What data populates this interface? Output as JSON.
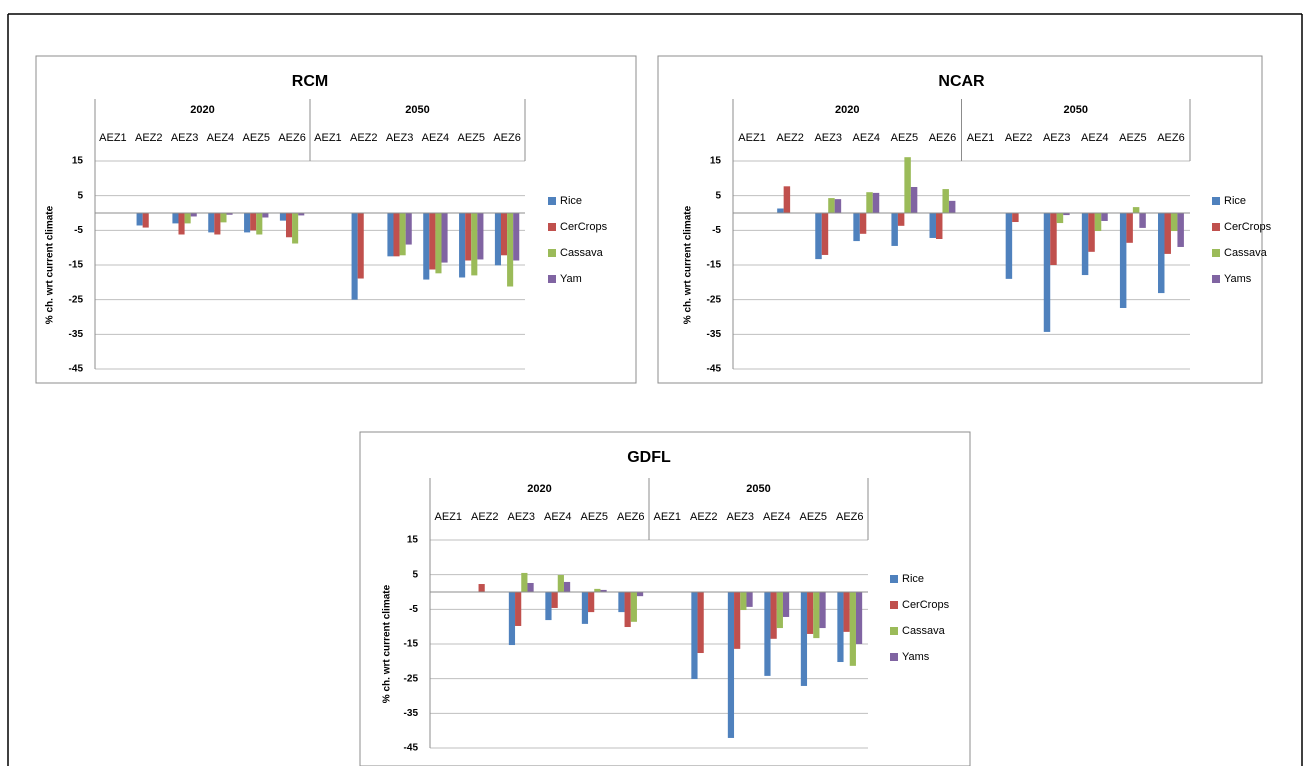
{
  "chart_data": [
    {
      "type": "bar",
      "title": "RCM",
      "y_label": "% ch. wrt current climate",
      "category_groups": [
        "2020",
        "2050"
      ],
      "categories": [
        "AEZ1",
        "AEZ2",
        "AEZ3",
        "AEZ4",
        "AEZ5",
        "AEZ6",
        "AEZ1",
        "AEZ2",
        "AEZ3",
        "AEZ4",
        "AEZ5",
        "AEZ6"
      ],
      "ylim": [
        -45,
        15
      ],
      "yticks": [
        15,
        5,
        -5,
        -15,
        -25,
        -35,
        -45
      ],
      "grid": true,
      "series": [
        {
          "name": "Rice",
          "color": "#4f81bd",
          "values": [
            0,
            -3.6,
            -3,
            -5.6,
            -5.6,
            -2.2,
            0,
            -25,
            -12.5,
            -19.2,
            -18.6,
            -15.1
          ]
        },
        {
          "name": "CerCrops",
          "color": "#c0504d",
          "values": [
            0,
            -4.2,
            -6.2,
            -6.2,
            -5,
            -7,
            0,
            -18.9,
            -12.5,
            -16.3,
            -13.7,
            -12.2
          ]
        },
        {
          "name": "Cassava",
          "color": "#9bbb59",
          "values": [
            0,
            0,
            -3,
            -2.7,
            -6.2,
            -8.8,
            0,
            0,
            -12.2,
            -17.4,
            -18,
            -21.2
          ]
        },
        {
          "name": "Yam",
          "color": "#8064a2",
          "values": [
            0,
            0,
            -1,
            -0.5,
            -1.3,
            -0.7,
            0,
            0,
            -9.1,
            -14.3,
            -13.4,
            -13.7
          ]
        }
      ]
    },
    {
      "type": "bar",
      "title": "NCAR",
      "y_label": "% ch. wrt current climate",
      "category_groups": [
        "2020",
        "2050"
      ],
      "categories": [
        "AEZ1",
        "AEZ2",
        "AEZ3",
        "AEZ4",
        "AEZ5",
        "AEZ6",
        "AEZ1",
        "AEZ2",
        "AEZ3",
        "AEZ4",
        "AEZ5",
        "AEZ6"
      ],
      "ylim": [
        -45,
        15
      ],
      "yticks": [
        15,
        5,
        -5,
        -15,
        -25,
        -35,
        -45
      ],
      "grid": true,
      "series": [
        {
          "name": "Rice",
          "color": "#4f81bd",
          "values": [
            0,
            1.3,
            -13.3,
            -8.1,
            -9.5,
            -7.2,
            0,
            -19,
            -34.3,
            -17.9,
            -27.4,
            -23.1
          ]
        },
        {
          "name": "CerCrops",
          "color": "#c0504d",
          "values": [
            0,
            7.7,
            -12.1,
            -6,
            -3.7,
            -7.5,
            0,
            -2.6,
            -15,
            -11.2,
            -8.6,
            -11.8
          ]
        },
        {
          "name": "Cassava",
          "color": "#9bbb59",
          "values": [
            0,
            0,
            4.3,
            6,
            16.1,
            6.9,
            0,
            0,
            -2.9,
            -5.2,
            1.7,
            -5.2
          ]
        },
        {
          "name": "Yams",
          "color": "#8064a2",
          "values": [
            0,
            0,
            4,
            5.8,
            7.5,
            3.5,
            0,
            0,
            -0.6,
            -2.3,
            -4.3,
            -9.8
          ]
        }
      ]
    },
    {
      "type": "bar",
      "title": "GDFL",
      "y_label": "% ch. wrt current climate",
      "category_groups": [
        "2020",
        "2050"
      ],
      "categories": [
        "AEZ1",
        "AEZ2",
        "AEZ3",
        "AEZ4",
        "AEZ5",
        "AEZ6",
        "AEZ1",
        "AEZ2",
        "AEZ3",
        "AEZ4",
        "AEZ5",
        "AEZ6"
      ],
      "ylim": [
        -45,
        15
      ],
      "yticks": [
        15,
        5,
        -5,
        -15,
        -25,
        -35,
        -45
      ],
      "grid": true,
      "series": [
        {
          "name": "Rice",
          "color": "#4f81bd",
          "values": [
            0,
            0,
            -15.3,
            -8.1,
            -9.2,
            -5.8,
            0,
            -25.1,
            -42.1,
            -24.2,
            -27.1,
            -20.2
          ]
        },
        {
          "name": "CerCrops",
          "color": "#c0504d",
          "values": [
            0,
            2.3,
            -9.8,
            -4.6,
            -5.8,
            -10.1,
            0,
            -17.6,
            -16.4,
            -13.5,
            -12.1,
            -11.5
          ]
        },
        {
          "name": "Cassava",
          "color": "#9bbb59",
          "values": [
            0,
            0,
            5.5,
            4.9,
            0.9,
            -8.6,
            0,
            0,
            -5.2,
            -10.4,
            -13.3,
            -21.3
          ]
        },
        {
          "name": "Yams",
          "color": "#8064a2",
          "values": [
            0,
            0,
            2.6,
            2.9,
            0.6,
            -1.2,
            0,
            0,
            -4.3,
            -7.2,
            -10.4,
            -15
          ]
        }
      ]
    }
  ]
}
